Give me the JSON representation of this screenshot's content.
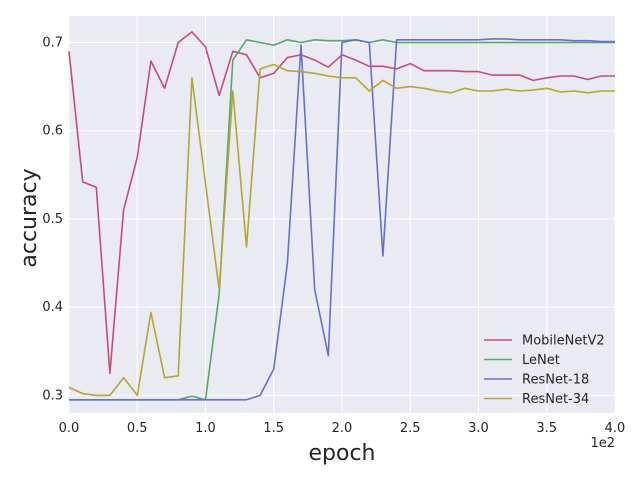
{
  "chart_data": {
    "type": "line",
    "title": "",
    "xlabel": "epoch",
    "ylabel": "accuracy",
    "x_offset_text": "1e2",
    "xlim": [
      0,
      400
    ],
    "ylim": [
      0.28,
      0.73
    ],
    "x_ticks": [
      0,
      50,
      100,
      150,
      200,
      250,
      300,
      350,
      400
    ],
    "x_tick_labels": [
      "0.0",
      "0.5",
      "1.0",
      "1.5",
      "2.0",
      "2.5",
      "3.0",
      "3.5",
      "4.0"
    ],
    "y_ticks": [
      0.3,
      0.4,
      0.5,
      0.6,
      0.7
    ],
    "y_tick_labels": [
      "0.3",
      "0.4",
      "0.5",
      "0.6",
      "0.7"
    ],
    "grid": true,
    "legend_position": "bottom-right",
    "x": [
      0,
      10,
      20,
      30,
      40,
      50,
      60,
      70,
      80,
      90,
      100,
      110,
      120,
      130,
      140,
      150,
      160,
      170,
      180,
      190,
      200,
      210,
      220,
      230,
      240,
      250,
      260,
      270,
      280,
      290,
      300,
      310,
      320,
      330,
      340,
      350,
      360,
      370,
      380,
      390,
      400
    ],
    "series": [
      {
        "name": "MobileNetV2",
        "color": "#c44e73",
        "values": [
          0.69,
          0.542,
          0.536,
          0.325,
          0.51,
          0.57,
          0.679,
          0.648,
          0.7,
          0.712,
          0.695,
          0.64,
          0.69,
          0.686,
          0.66,
          0.665,
          0.683,
          0.686,
          0.68,
          0.672,
          0.686,
          0.68,
          0.673,
          0.673,
          0.67,
          0.676,
          0.668,
          0.668,
          0.668,
          0.667,
          0.667,
          0.663,
          0.663,
          0.663,
          0.657,
          0.66,
          0.662,
          0.662,
          0.658,
          0.662,
          0.662
        ]
      },
      {
        "name": "LeNet",
        "color": "#55a868",
        "values": [
          0.295,
          0.295,
          0.295,
          0.295,
          0.295,
          0.295,
          0.295,
          0.295,
          0.295,
          0.299,
          0.295,
          0.415,
          0.68,
          0.703,
          0.7,
          0.697,
          0.703,
          0.7,
          0.703,
          0.702,
          0.702,
          0.703,
          0.7,
          0.703,
          0.7,
          0.7,
          0.7,
          0.7,
          0.7,
          0.7,
          0.7,
          0.7,
          0.7,
          0.7,
          0.7,
          0.7,
          0.7,
          0.7,
          0.7,
          0.7,
          0.7
        ]
      },
      {
        "name": "ResNet-18",
        "color": "#6870c8",
        "values": [
          0.295,
          0.295,
          0.295,
          0.295,
          0.295,
          0.295,
          0.295,
          0.295,
          0.295,
          0.295,
          0.295,
          0.295,
          0.295,
          0.295,
          0.3,
          0.33,
          0.45,
          0.697,
          0.42,
          0.345,
          0.7,
          0.703,
          0.7,
          0.458,
          0.703,
          0.703,
          0.703,
          0.703,
          0.703,
          0.703,
          0.703,
          0.704,
          0.704,
          0.703,
          0.703,
          0.703,
          0.703,
          0.702,
          0.702,
          0.701,
          0.701
        ]
      },
      {
        "name": "ResNet-34",
        "color": "#b5a631",
        "values": [
          0.309,
          0.302,
          0.3,
          0.3,
          0.32,
          0.3,
          0.394,
          0.32,
          0.322,
          0.66,
          0.54,
          0.42,
          0.645,
          0.468,
          0.67,
          0.675,
          0.668,
          0.667,
          0.665,
          0.662,
          0.66,
          0.66,
          0.645,
          0.657,
          0.648,
          0.65,
          0.648,
          0.645,
          0.643,
          0.648,
          0.645,
          0.645,
          0.647,
          0.645,
          0.646,
          0.648,
          0.644,
          0.645,
          0.643,
          0.645,
          0.645
        ]
      }
    ]
  }
}
